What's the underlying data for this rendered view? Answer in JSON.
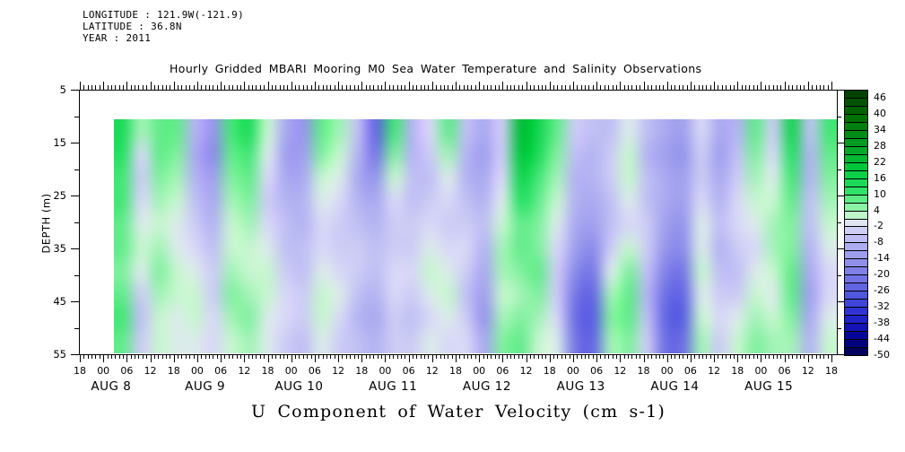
{
  "figure": {
    "background": "#ffffff",
    "header": {
      "line1": "LONGITUDE : 121.9W(-121.9)",
      "line2": "LATITUDE : 36.8N",
      "line3": "YEAR : 2011"
    },
    "title": "Hourly Gridded MBARI Mooring M0 Sea Water Temperature and Salinity Observations",
    "bottom_title": "U Component of Water Velocity (cm s-1)"
  },
  "axes": {
    "y": {
      "label": "DEPTH (m)",
      "tick_labels": [
        "5",
        "15",
        "25",
        "35",
        "45",
        "55"
      ],
      "min": 5,
      "max": 55,
      "minor_step_m": 5,
      "major_step_m": 10
    },
    "x": {
      "start": "AUG 7 18:00",
      "end": "AUG 15 18:00",
      "minor_tick_hours": 1,
      "major_tick_hours": 6,
      "hour_labels": [
        "18",
        "00",
        "06",
        "12",
        "18",
        "00",
        "06",
        "12",
        "18",
        "00",
        "06",
        "12",
        "18",
        "00",
        "06",
        "12",
        "18",
        "00",
        "06",
        "12",
        "18",
        "00",
        "06",
        "12",
        "18",
        "00",
        "06",
        "12",
        "18",
        "00",
        "06",
        "12",
        "18"
      ],
      "day_labels": [
        "AUG 8",
        "AUG 9",
        "AUG 10",
        "AUG 11",
        "AUG 12",
        "AUG 13",
        "AUG 14",
        "AUG 15"
      ]
    }
  },
  "colorbar": {
    "min": -50,
    "max": 49,
    "segment_step": 3,
    "label_step": 6,
    "labels": [
      "46",
      "40",
      "34",
      "28",
      "22",
      "16",
      "10",
      "4",
      "-2",
      "-8",
      "-14",
      "-20",
      "-26",
      "-32",
      "-38",
      "-44",
      "-50"
    ],
    "label_values": [
      46,
      40,
      34,
      28,
      22,
      16,
      10,
      4,
      -2,
      -8,
      -14,
      -20,
      -26,
      -32,
      -38,
      -44,
      -50
    ]
  },
  "chart_data": {
    "type": "heatmap",
    "title": "Hourly Gridded MBARI Mooring M0 Sea Water Temperature and Salinity Observations",
    "variable": "U Component of Water Velocity",
    "units": "cm s-1",
    "year": 2011,
    "time_start": "AUG 8 ~03:00",
    "time_end": "AUG 15 ~21:00",
    "n_time_columns": 40,
    "depths_m": [
      12,
      17,
      21,
      26,
      31,
      35,
      40,
      44,
      48,
      53
    ],
    "data_top_depth_m": 10,
    "value_range": [
      -50,
      49
    ],
    "values_by_time_column": [
      [
        14,
        12,
        10,
        10,
        8,
        8,
        6,
        8,
        10,
        8
      ],
      [
        4,
        -2,
        -4,
        -2,
        0,
        2,
        0,
        -4,
        -6,
        -4
      ],
      [
        8,
        8,
        6,
        4,
        2,
        4,
        6,
        4,
        2,
        2
      ],
      [
        8,
        6,
        4,
        2,
        0,
        0,
        2,
        2,
        0,
        0
      ],
      [
        -8,
        -10,
        -8,
        -6,
        -4,
        -2,
        0,
        2,
        2,
        0
      ],
      [
        -14,
        -16,
        -12,
        -10,
        -8,
        -6,
        -4,
        -4,
        -2,
        -2
      ],
      [
        10,
        8,
        6,
        4,
        2,
        2,
        4,
        6,
        4,
        2
      ],
      [
        14,
        10,
        8,
        6,
        4,
        2,
        2,
        4,
        6,
        4
      ],
      [
        2,
        0,
        -2,
        -4,
        -2,
        0,
        2,
        2,
        0,
        0
      ],
      [
        -10,
        -12,
        -10,
        -8,
        -6,
        -6,
        -4,
        -2,
        -2,
        -4
      ],
      [
        -14,
        -12,
        -10,
        -8,
        -8,
        -6,
        -6,
        -4,
        -4,
        -6
      ],
      [
        8,
        6,
        2,
        0,
        -2,
        -2,
        0,
        2,
        2,
        0
      ],
      [
        4,
        2,
        0,
        -2,
        -4,
        -4,
        -2,
        0,
        -2,
        -4
      ],
      [
        -6,
        -8,
        -10,
        -8,
        -6,
        -4,
        -4,
        -6,
        -8,
        -6
      ],
      [
        -24,
        -20,
        -14,
        -10,
        -8,
        -6,
        -6,
        -8,
        -10,
        -8
      ],
      [
        10,
        6,
        2,
        -2,
        -4,
        -4,
        -2,
        -2,
        -4,
        -4
      ],
      [
        -8,
        -8,
        -6,
        -6,
        -4,
        -4,
        -2,
        -4,
        -6,
        -4
      ],
      [
        -2,
        -4,
        -6,
        -4,
        -2,
        0,
        2,
        0,
        -2,
        0
      ],
      [
        8,
        4,
        0,
        -2,
        -4,
        -2,
        0,
        2,
        0,
        -2
      ],
      [
        -6,
        -8,
        -8,
        -6,
        -4,
        -2,
        -4,
        -6,
        -4,
        -2
      ],
      [
        -10,
        -12,
        -10,
        -8,
        -6,
        -8,
        -10,
        -12,
        -14,
        -10
      ],
      [
        -4,
        -4,
        -2,
        0,
        2,
        4,
        4,
        2,
        4,
        6
      ],
      [
        22,
        20,
        16,
        12,
        8,
        8,
        6,
        4,
        6,
        8
      ],
      [
        16,
        14,
        10,
        8,
        6,
        6,
        8,
        6,
        4,
        2
      ],
      [
        8,
        6,
        4,
        2,
        0,
        -2,
        -4,
        -4,
        -2,
        0
      ],
      [
        -4,
        -6,
        -8,
        -8,
        -10,
        -12,
        -16,
        -20,
        -22,
        -20
      ],
      [
        -6,
        -8,
        -8,
        -10,
        -12,
        -16,
        -20,
        -24,
        -26,
        -24
      ],
      [
        -6,
        -4,
        -4,
        -6,
        -6,
        -4,
        0,
        4,
        6,
        4
      ],
      [
        0,
        2,
        2,
        0,
        -2,
        2,
        6,
        8,
        8,
        6
      ],
      [
        -6,
        -8,
        -6,
        -6,
        -4,
        -4,
        -6,
        -8,
        -6,
        -4
      ],
      [
        -10,
        -12,
        -10,
        -10,
        -12,
        -14,
        -18,
        -22,
        -24,
        -22
      ],
      [
        -12,
        -14,
        -12,
        -12,
        -14,
        -16,
        -20,
        -24,
        -26,
        -22
      ],
      [
        -2,
        -4,
        -4,
        -2,
        0,
        0,
        2,
        0,
        2,
        4
      ],
      [
        -10,
        -12,
        -10,
        -8,
        -6,
        -8,
        -6,
        -4,
        -2,
        -4
      ],
      [
        -8,
        -6,
        -4,
        -2,
        -2,
        -4,
        -6,
        -4,
        0,
        2
      ],
      [
        8,
        6,
        4,
        2,
        0,
        -2,
        0,
        2,
        4,
        6
      ],
      [
        -4,
        -2,
        0,
        2,
        4,
        4,
        2,
        0,
        2,
        4
      ],
      [
        16,
        12,
        10,
        8,
        6,
        6,
        8,
        8,
        6,
        4
      ],
      [
        -6,
        -8,
        -8,
        -6,
        -6,
        -8,
        -10,
        -12,
        -10,
        -8
      ],
      [
        10,
        8,
        6,
        4,
        2,
        0,
        -2,
        -2,
        0,
        2
      ]
    ],
    "colormap_anchors": [
      [
        -50,
        "#000050"
      ],
      [
        -44,
        "#00008c"
      ],
      [
        -38,
        "#1919c3"
      ],
      [
        -32,
        "#373cd7"
      ],
      [
        -26,
        "#5a5fe1"
      ],
      [
        -20,
        "#7878e6"
      ],
      [
        -14,
        "#9696ec"
      ],
      [
        -8,
        "#b4b4f2"
      ],
      [
        -1,
        "#dedef8"
      ],
      [
        1,
        "#d8f8dc"
      ],
      [
        6,
        "#82f0a0"
      ],
      [
        12,
        "#28e164"
      ],
      [
        20,
        "#00c83c"
      ],
      [
        30,
        "#00981e"
      ],
      [
        40,
        "#006b00"
      ],
      [
        49,
        "#003b00"
      ]
    ]
  }
}
